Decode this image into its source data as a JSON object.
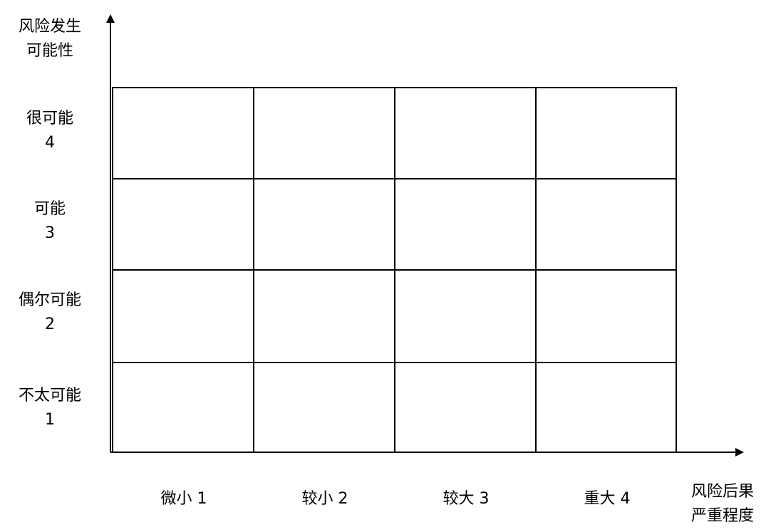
{
  "matrix": {
    "y_axis_title": [
      "风险发生",
      "可能性"
    ],
    "x_axis_title": [
      "风险后果",
      "严重程度"
    ],
    "rows": [
      {
        "name": "很可能",
        "value": "4"
      },
      {
        "name": "可能",
        "value": "3"
      },
      {
        "name": "偶尔可能",
        "value": "2"
      },
      {
        "name": "不太可能",
        "value": "1"
      }
    ],
    "columns": [
      "微小 1",
      "较小 2",
      "较大 3",
      "重大 4"
    ]
  },
  "colors": {
    "line": "#000000",
    "background": "#ffffff"
  }
}
